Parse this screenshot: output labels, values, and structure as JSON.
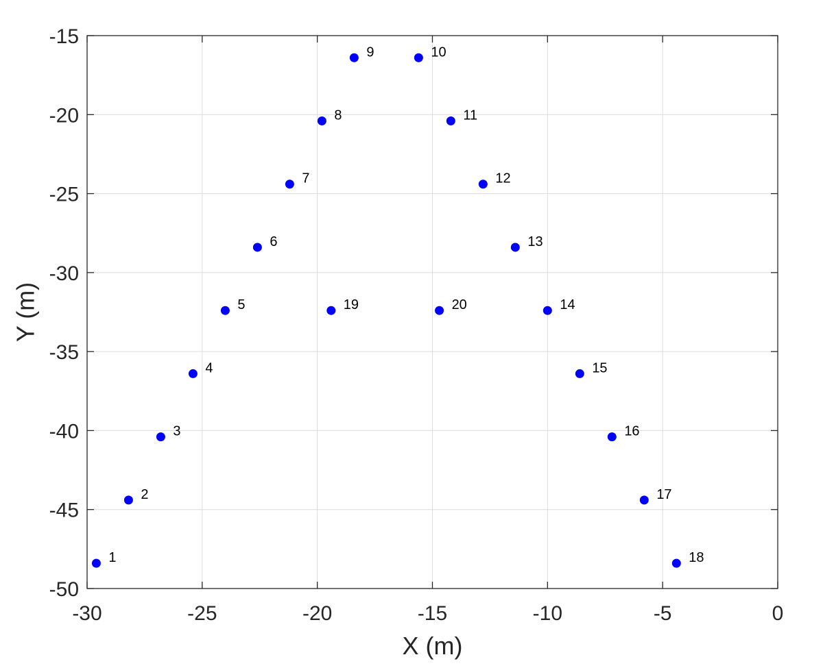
{
  "chart_data": {
    "type": "scatter",
    "xlabel": "X (m)",
    "ylabel": "Y (m)",
    "xlim": [
      -30,
      0
    ],
    "ylim": [
      -50,
      -15
    ],
    "xticks": [
      -30,
      -25,
      -20,
      -15,
      -10,
      -5,
      0
    ],
    "yticks": [
      -15,
      -20,
      -25,
      -30,
      -35,
      -40,
      -45,
      -50
    ],
    "grid": true,
    "marker_color": "#0000ff",
    "points": [
      {
        "label": "1",
        "x": -29.6,
        "y": -48.4
      },
      {
        "label": "2",
        "x": -28.2,
        "y": -44.4
      },
      {
        "label": "3",
        "x": -26.8,
        "y": -40.4
      },
      {
        "label": "4",
        "x": -25.4,
        "y": -36.4
      },
      {
        "label": "5",
        "x": -24.0,
        "y": -32.4
      },
      {
        "label": "6",
        "x": -22.6,
        "y": -28.4
      },
      {
        "label": "7",
        "x": -21.2,
        "y": -24.4
      },
      {
        "label": "8",
        "x": -19.8,
        "y": -20.4
      },
      {
        "label": "9",
        "x": -18.4,
        "y": -16.4
      },
      {
        "label": "10",
        "x": -15.6,
        "y": -16.4
      },
      {
        "label": "11",
        "x": -14.2,
        "y": -20.4
      },
      {
        "label": "12",
        "x": -12.8,
        "y": -24.4
      },
      {
        "label": "13",
        "x": -11.4,
        "y": -28.4
      },
      {
        "label": "14",
        "x": -10.0,
        "y": -32.4
      },
      {
        "label": "15",
        "x": -8.6,
        "y": -36.4
      },
      {
        "label": "16",
        "x": -7.2,
        "y": -40.4
      },
      {
        "label": "17",
        "x": -5.8,
        "y": -44.4
      },
      {
        "label": "18",
        "x": -4.4,
        "y": -48.4
      },
      {
        "label": "19",
        "x": -19.4,
        "y": -32.4
      },
      {
        "label": "20",
        "x": -14.7,
        "y": -32.4
      }
    ]
  }
}
